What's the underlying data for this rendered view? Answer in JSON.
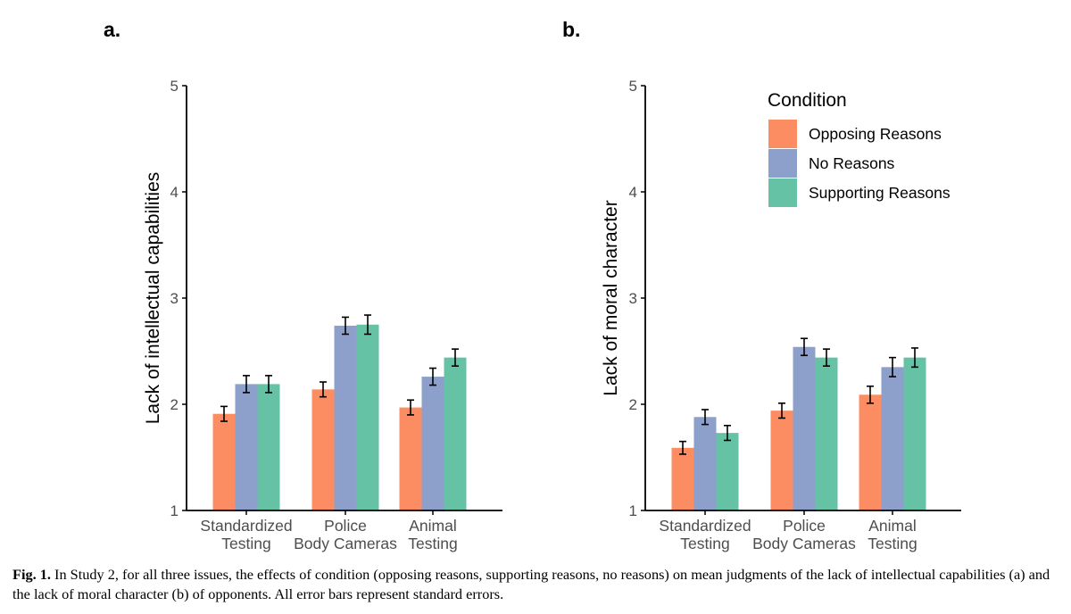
{
  "panels": [
    {
      "letter": "a."
    },
    {
      "letter": "b."
    }
  ],
  "colors": {
    "Opposing Reasons": "#fc8d62",
    "No Reasons": "#8da0cb",
    "Supporting Reasons": "#66c2a5",
    "axis": "#000000",
    "tick_text": "#4d4d4d"
  },
  "legend": {
    "title": "Condition",
    "placement": "top-right of panel b",
    "items": [
      "Opposing Reasons",
      "No Reasons",
      "Supporting Reasons"
    ]
  },
  "chart_data": [
    {
      "type": "bar",
      "panel": "a.",
      "ylabel": "Lack of intellectual capabilities",
      "xlabel": "",
      "ylim": [
        1,
        5
      ],
      "yticks": [
        1,
        2,
        3,
        4,
        5
      ],
      "grid": false,
      "categories": [
        [
          "Standardized",
          "Testing"
        ],
        [
          "Police",
          "Body Cameras"
        ],
        [
          "Animal",
          "Testing"
        ]
      ],
      "series": [
        {
          "name": "Opposing Reasons",
          "values": [
            1.91,
            2.14,
            1.97
          ],
          "errors": [
            0.07,
            0.07,
            0.07
          ]
        },
        {
          "name": "No Reasons",
          "values": [
            2.19,
            2.74,
            2.26
          ],
          "errors": [
            0.08,
            0.08,
            0.08
          ]
        },
        {
          "name": "Supporting Reasons",
          "values": [
            2.19,
            2.75,
            2.44
          ],
          "errors": [
            0.08,
            0.09,
            0.08
          ]
        }
      ]
    },
    {
      "type": "bar",
      "panel": "b.",
      "ylabel": "Lack of moral character",
      "xlabel": "",
      "ylim": [
        1,
        5
      ],
      "yticks": [
        1,
        2,
        3,
        4,
        5
      ],
      "grid": false,
      "categories": [
        [
          "Standardized",
          "Testing"
        ],
        [
          "Police",
          "Body Cameras"
        ],
        [
          "Animal",
          "Testing"
        ]
      ],
      "series": [
        {
          "name": "Opposing Reasons",
          "values": [
            1.59,
            1.94,
            2.09
          ],
          "errors": [
            0.06,
            0.07,
            0.08
          ]
        },
        {
          "name": "No Reasons",
          "values": [
            1.88,
            2.54,
            2.35
          ],
          "errors": [
            0.07,
            0.08,
            0.09
          ]
        },
        {
          "name": "Supporting Reasons",
          "values": [
            1.73,
            2.44,
            2.44
          ],
          "errors": [
            0.07,
            0.08,
            0.09
          ]
        }
      ]
    }
  ],
  "caption": {
    "label": "Fig. 1.",
    "text": " In Study 2, for all three issues, the effects of condition (opposing reasons, supporting reasons, no reasons) on mean judgments of the lack of intellectual capabilities (a) and the lack of moral character (b) of opponents. All error bars represent standard errors."
  }
}
